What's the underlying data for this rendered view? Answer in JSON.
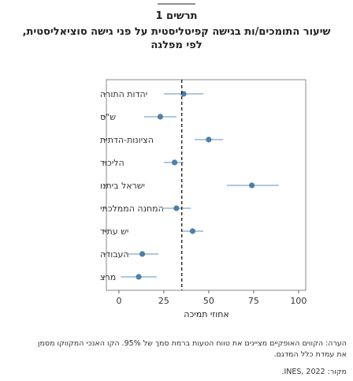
{
  "title": {
    "line1": "תרשים 1",
    "line2": "שיעור התומכים/ות בגישה קפיטליסטית על פני גישה סוציאליסטית,",
    "line3": "לפי מפלגה"
  },
  "note_line1": "הערה: הקווים האופקיים מציינים את טווח הטעות ברמת סמך של 95%. הקו האנכי המקווקו מסמן",
  "note_line2": "את עמדת כלל המדגם.",
  "source": "מקור: INES, 2022.",
  "colors": {
    "point": "#4f7ea8",
    "ci": "#7fa6c8",
    "reference": "#000000"
  },
  "chart_data": {
    "type": "scatter",
    "orientation": "horizontal-dot-plot-with-error-bars",
    "xlabel": "אחוזי תמיכה",
    "xlim": [
      -7,
      104
    ],
    "xticks": [
      0,
      25,
      50,
      75,
      100
    ],
    "reference_line": 35,
    "categories": [
      "יהדות התורה",
      "ש\"ס",
      "הציונות-הדתית",
      "הליכוד",
      "ישראל ביתנו",
      "המחנה הממלכתי",
      "יש עתיד",
      "העבודה",
      "מרצ"
    ],
    "values": [
      36,
      23,
      50,
      31,
      74,
      32,
      41,
      13,
      11
    ],
    "ci_low": [
      25,
      14,
      42,
      25,
      60,
      24,
      35,
      4,
      1
    ],
    "ci_high": [
      47,
      32,
      58,
      36,
      89,
      40,
      47,
      22,
      21
    ]
  }
}
